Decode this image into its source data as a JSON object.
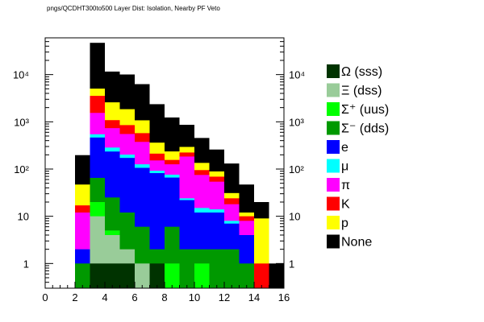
{
  "chart_data": {
    "type": "bar",
    "stacked": true,
    "title": "pngs/QCDHT300to500 Layer Dist: Isolation, Nearby PF Veto",
    "xlabel": "",
    "ylabel": "",
    "log_y": true,
    "xlim": [
      0,
      16
    ],
    "ylim": [
      0.3,
      60000
    ],
    "grid": false,
    "legend_position": "right",
    "x_ticks": [
      "0",
      "2",
      "4",
      "6",
      "8",
      "10",
      "12",
      "14",
      "16"
    ],
    "y_ticks": [
      {
        "value": 1,
        "label": "1"
      },
      {
        "value": 10,
        "label": "10"
      },
      {
        "value": 100,
        "label": "10²"
      },
      {
        "value": 1000,
        "label": "10³"
      },
      {
        "value": 10000,
        "label": "10⁴"
      }
    ],
    "bin_edges": [
      2,
      3,
      4,
      5,
      6,
      7,
      8,
      9,
      10,
      11,
      12,
      13,
      14,
      15,
      16
    ],
    "series": [
      {
        "name": "Ω (sss)",
        "color": "#003300",
        "values": [
          0,
          1,
          1,
          1,
          0,
          1,
          0,
          0,
          0,
          0,
          0,
          0,
          0,
          0
        ]
      },
      {
        "name": "Ξ (dss)",
        "color": "#99cc99",
        "values": [
          0,
          9,
          3,
          1,
          1,
          0,
          0,
          0,
          0,
          0,
          0,
          0,
          0,
          0
        ]
      },
      {
        "name": "Σ⁺ (uus)",
        "color": "#00ff00",
        "values": [
          0,
          10,
          1,
          0,
          0,
          0,
          1,
          0,
          1,
          0,
          0,
          0,
          0,
          0
        ]
      },
      {
        "name": "Σ⁻ (dds)",
        "color": "#009900",
        "values": [
          1,
          45,
          20,
          10,
          5,
          1,
          5,
          2,
          1,
          2,
          2,
          1,
          0,
          0
        ]
      },
      {
        "name": "e",
        "color": "#0000ff",
        "values": [
          1,
          400,
          210,
          160,
          100,
          80,
          60,
          20,
          10,
          10,
          5,
          3,
          0,
          0
        ]
      },
      {
        "name": "μ",
        "color": "#00ffff",
        "values": [
          0,
          80,
          50,
          30,
          20,
          10,
          10,
          2,
          3,
          2,
          1,
          0,
          0,
          0
        ]
      },
      {
        "name": "π",
        "color": "#ff00ff",
        "values": [
          10,
          1000,
          450,
          350,
          250,
          60,
          50,
          160,
          60,
          40,
          10,
          4,
          0,
          0
        ]
      },
      {
        "name": "K",
        "color": "#ff0000",
        "values": [
          5,
          2000,
          350,
          300,
          200,
          60,
          30,
          40,
          20,
          15,
          6,
          2,
          1,
          0
        ]
      },
      {
        "name": "p",
        "color": "#ffff00",
        "values": [
          30,
          1500,
          1500,
          1000,
          500,
          150,
          80,
          70,
          40,
          20,
          7,
          2,
          8,
          0
        ]
      },
      {
        "name": "None",
        "color": "#000000",
        "values": [
          150,
          42000,
          9000,
          8200,
          5200,
          2000,
          1000,
          570,
          320,
          170,
          100,
          35,
          11,
          1
        ]
      }
    ]
  }
}
